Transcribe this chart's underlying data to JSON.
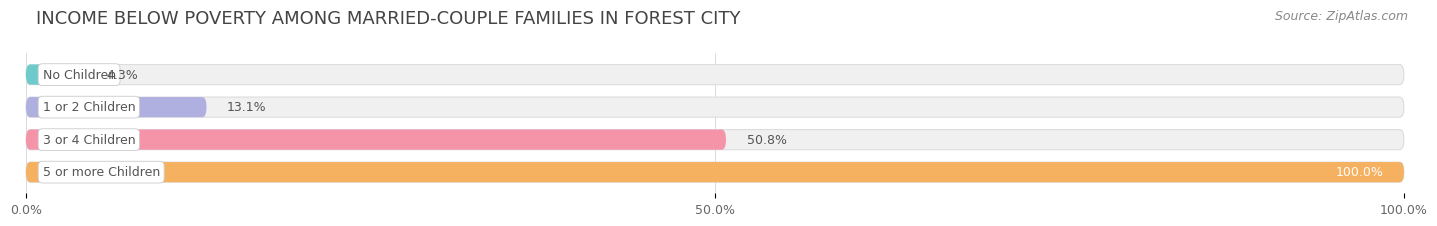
{
  "title": "INCOME BELOW POVERTY AMONG MARRIED-COUPLE FAMILIES IN FOREST CITY",
  "source": "Source: ZipAtlas.com",
  "categories": [
    "No Children",
    "1 or 2 Children",
    "3 or 4 Children",
    "5 or more Children"
  ],
  "values": [
    4.3,
    13.1,
    50.8,
    100.0
  ],
  "value_labels": [
    "4.3%",
    "13.1%",
    "50.8%",
    "100.0%"
  ],
  "bar_colors": [
    "#6dcbcc",
    "#b0b0e0",
    "#f593a8",
    "#f5b060"
  ],
  "bar_bg_color": "#f0f0f0",
  "bar_bg_edge_color": "#dddddd",
  "xlim": [
    0,
    100
  ],
  "xtick_labels": [
    "0.0%",
    "50.0%",
    "100.0%"
  ],
  "xtick_values": [
    0,
    50,
    100
  ],
  "title_fontsize": 13,
  "source_fontsize": 9,
  "label_fontsize": 9,
  "value_fontsize": 9,
  "tick_fontsize": 9,
  "background_color": "#ffffff",
  "bar_height": 0.62,
  "label_text_color": "#555555",
  "value_color_outside": "#555555",
  "value_color_inside": "#ffffff",
  "grid_color": "#cccccc",
  "inside_threshold": 95
}
